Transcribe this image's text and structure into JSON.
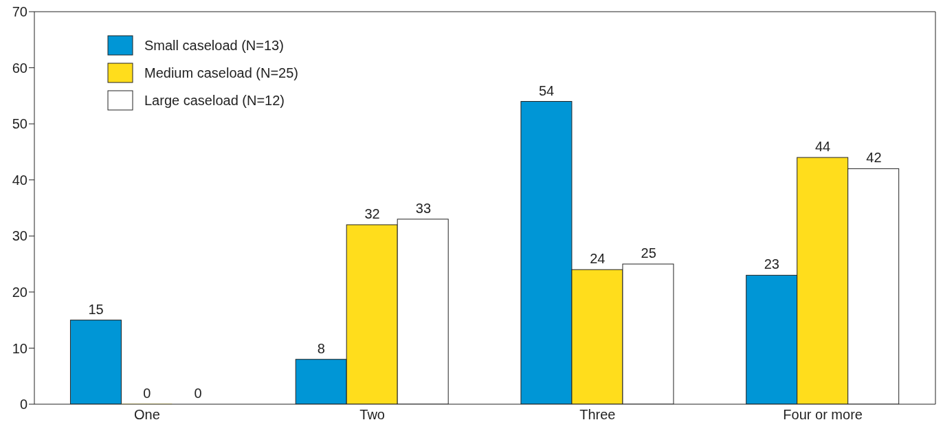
{
  "chart_data": {
    "type": "bar",
    "categories": [
      "One",
      "Two",
      "Three",
      "Four or more"
    ],
    "series": [
      {
        "name": "Small caseload (N=13)",
        "color": "#0096d6",
        "values": [
          15,
          8,
          54,
          23
        ]
      },
      {
        "name": "Medium caseload (N=25)",
        "color": "#ffdd1c",
        "values": [
          0,
          32,
          24,
          44
        ]
      },
      {
        "name": "Large caseload (N=12)",
        "color": "#ffffff",
        "values": [
          0,
          33,
          25,
          42
        ]
      }
    ],
    "ylim": [
      0,
      70
    ],
    "yticks": [
      0,
      10,
      20,
      30,
      40,
      50,
      60,
      70
    ],
    "grid": false,
    "legend": "top left",
    "data_labels": true
  }
}
